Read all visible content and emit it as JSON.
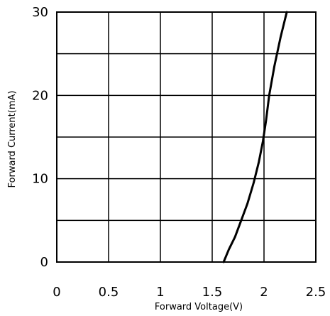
{
  "chart_data": {
    "type": "line",
    "xlabel": "Forward  Voltage(V)",
    "ylabel": "Forward  Current(mA)",
    "xlim": [
      0,
      2.5
    ],
    "ylim": [
      0,
      30
    ],
    "x_ticks": [
      "0",
      "0.5",
      "1",
      "1.5",
      "2",
      "2.5"
    ],
    "y_ticks": [
      "0",
      "10",
      "20",
      "30"
    ],
    "x_grid_step": 0.5,
    "y_grid_step": 5,
    "grid": true,
    "series": [
      {
        "x": [
          1.61,
          1.66,
          1.72,
          1.78,
          1.84,
          1.9,
          1.95,
          1.99,
          2.02,
          2.05,
          2.1,
          2.16,
          2.22
        ],
        "y": [
          0,
          1.5,
          3.0,
          5.0,
          7.0,
          9.5,
          12.0,
          14.5,
          17.0,
          20.0,
          23.5,
          27.0,
          30.0
        ]
      }
    ]
  }
}
